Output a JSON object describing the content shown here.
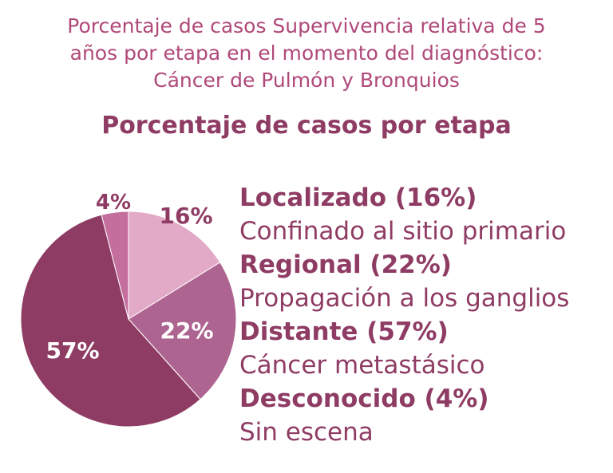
{
  "header": {
    "title_lines": [
      "Porcentaje de casos Supervivencia relativa de 5",
      "años por etapa en el momento del diagnóstico:",
      "Cáncer de Pulmón y Bronquios"
    ],
    "subtitle": "Porcentaje de casos por etapa"
  },
  "chart_data": {
    "type": "pie",
    "title": "Porcentaje de casos Supervivencia relativa de 5 años por etapa en el momento del diagnóstico: Cáncer de Pulmón y Bronquios",
    "subtitle": "Porcentaje de casos por etapa",
    "start_angle_deg": 0,
    "direction": "clockwise",
    "slices": [
      {
        "name": "Localizado",
        "value": 16,
        "label": "16%",
        "color": "#e3aac8",
        "label_color": "#8f3c64"
      },
      {
        "name": "Regional",
        "value": 22,
        "label": "22%",
        "color": "#ae6490",
        "label_color": "#ffffff"
      },
      {
        "name": "Distante",
        "value": 57,
        "label": "57%",
        "color": "#8f3c64",
        "label_color": "#ffffff"
      },
      {
        "name": "Desconocido",
        "value": 4,
        "label": "4%",
        "color": "#c46e9e",
        "label_color": "#8f3c64"
      }
    ]
  },
  "legend": [
    {
      "label": "Localizado (16%)",
      "desc": "Confinado al sitio primario"
    },
    {
      "label": "Regional (22%)",
      "desc": "Propagación a los ganglios"
    },
    {
      "label": "Distante (57%)",
      "desc": "Cáncer metastásico"
    },
    {
      "label": "Desconocido (4%)",
      "desc": "Sin escena"
    }
  ]
}
